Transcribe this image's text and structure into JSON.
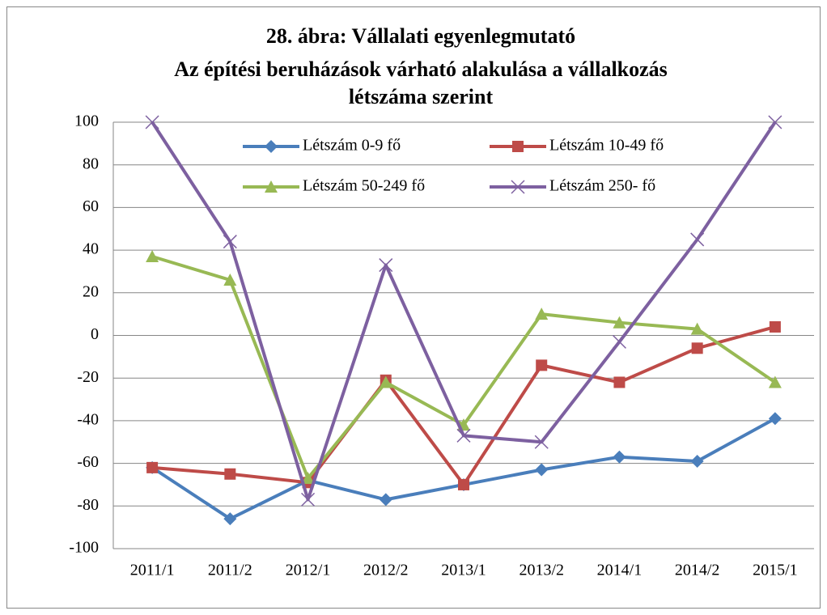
{
  "chart_data": {
    "type": "line",
    "title": [
      "28. ábra: Vállalati egyenlegmutató",
      "Az építési beruházások várható alakulása a vállalkozás",
      "létszáma szerint"
    ],
    "categories": [
      "2011/1",
      "2011/2",
      "2012/1",
      "2012/2",
      "2013/1",
      "2013/2",
      "2014/1",
      "2014/2",
      "2015/1"
    ],
    "series": [
      {
        "name": "Létszám 0-9 fő",
        "color": "#4a7ebb",
        "marker": "diamond",
        "values": [
          -62,
          -86,
          -68,
          -77,
          -70,
          -63,
          -57,
          -59,
          -39
        ]
      },
      {
        "name": "Létszám 10-49 fő",
        "color": "#be4b48",
        "marker": "square",
        "values": [
          -62,
          -65,
          -69,
          -21,
          -70,
          -14,
          -22,
          -6,
          4
        ]
      },
      {
        "name": "Létszám 50-249 fő",
        "color": "#98b954",
        "marker": "triangle",
        "values": [
          37,
          26,
          -67,
          -22,
          -42,
          10,
          6,
          3,
          -22
        ]
      },
      {
        "name": "Létszám 250- fő",
        "color": "#7d60a0",
        "marker": "x",
        "values": [
          100,
          44,
          -77,
          33,
          -47,
          -50,
          -3,
          45,
          100
        ]
      }
    ],
    "ylim": [
      -100,
      100
    ],
    "yticks": [
      -100,
      -80,
      -60,
      -40,
      -20,
      0,
      20,
      40,
      60,
      80,
      100
    ],
    "grid": true,
    "legend": "top"
  }
}
